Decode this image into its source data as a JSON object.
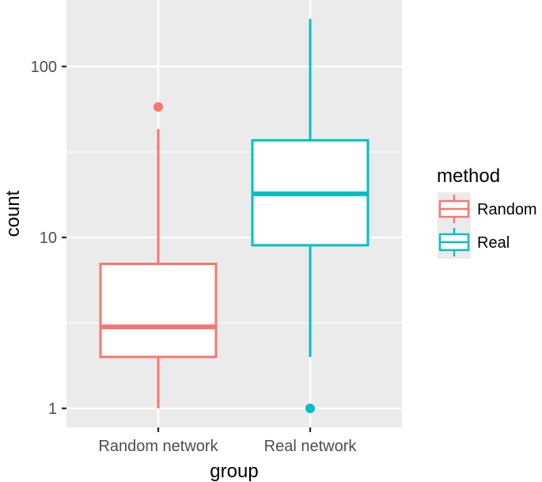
{
  "chart_data": {
    "type": "boxplot",
    "title": "",
    "xlabel": "group",
    "ylabel": "count",
    "y_scale": "log10",
    "ylim": [
      0.8,
      280
    ],
    "yticks": [
      {
        "value": 1,
        "label": "1"
      },
      {
        "value": 10,
        "label": "10"
      },
      {
        "value": 100,
        "label": "100"
      }
    ],
    "categories": [
      "Random network",
      "Real network"
    ],
    "grid": true,
    "legend": {
      "title": "method",
      "position": "right",
      "entries": [
        {
          "label": "Random",
          "color": "#F8766D"
        },
        {
          "label": "Real",
          "color": "#00BFC4"
        }
      ]
    },
    "series": [
      {
        "name": "Random",
        "category": "Random network",
        "color": "#F8766D",
        "whisker_low": 1,
        "q1": 2,
        "median": 3,
        "q3": 7,
        "whisker_high": 43,
        "outliers": [
          58
        ]
      },
      {
        "name": "Real",
        "category": "Real network",
        "color": "#00BFC4",
        "whisker_low": 2,
        "q1": 9,
        "median": 18,
        "q3": 37,
        "whisker_high": 190,
        "outliers": [
          1
        ]
      }
    ],
    "panel_background": "#EBEBEB",
    "gridline_color": "#FFFFFF"
  }
}
